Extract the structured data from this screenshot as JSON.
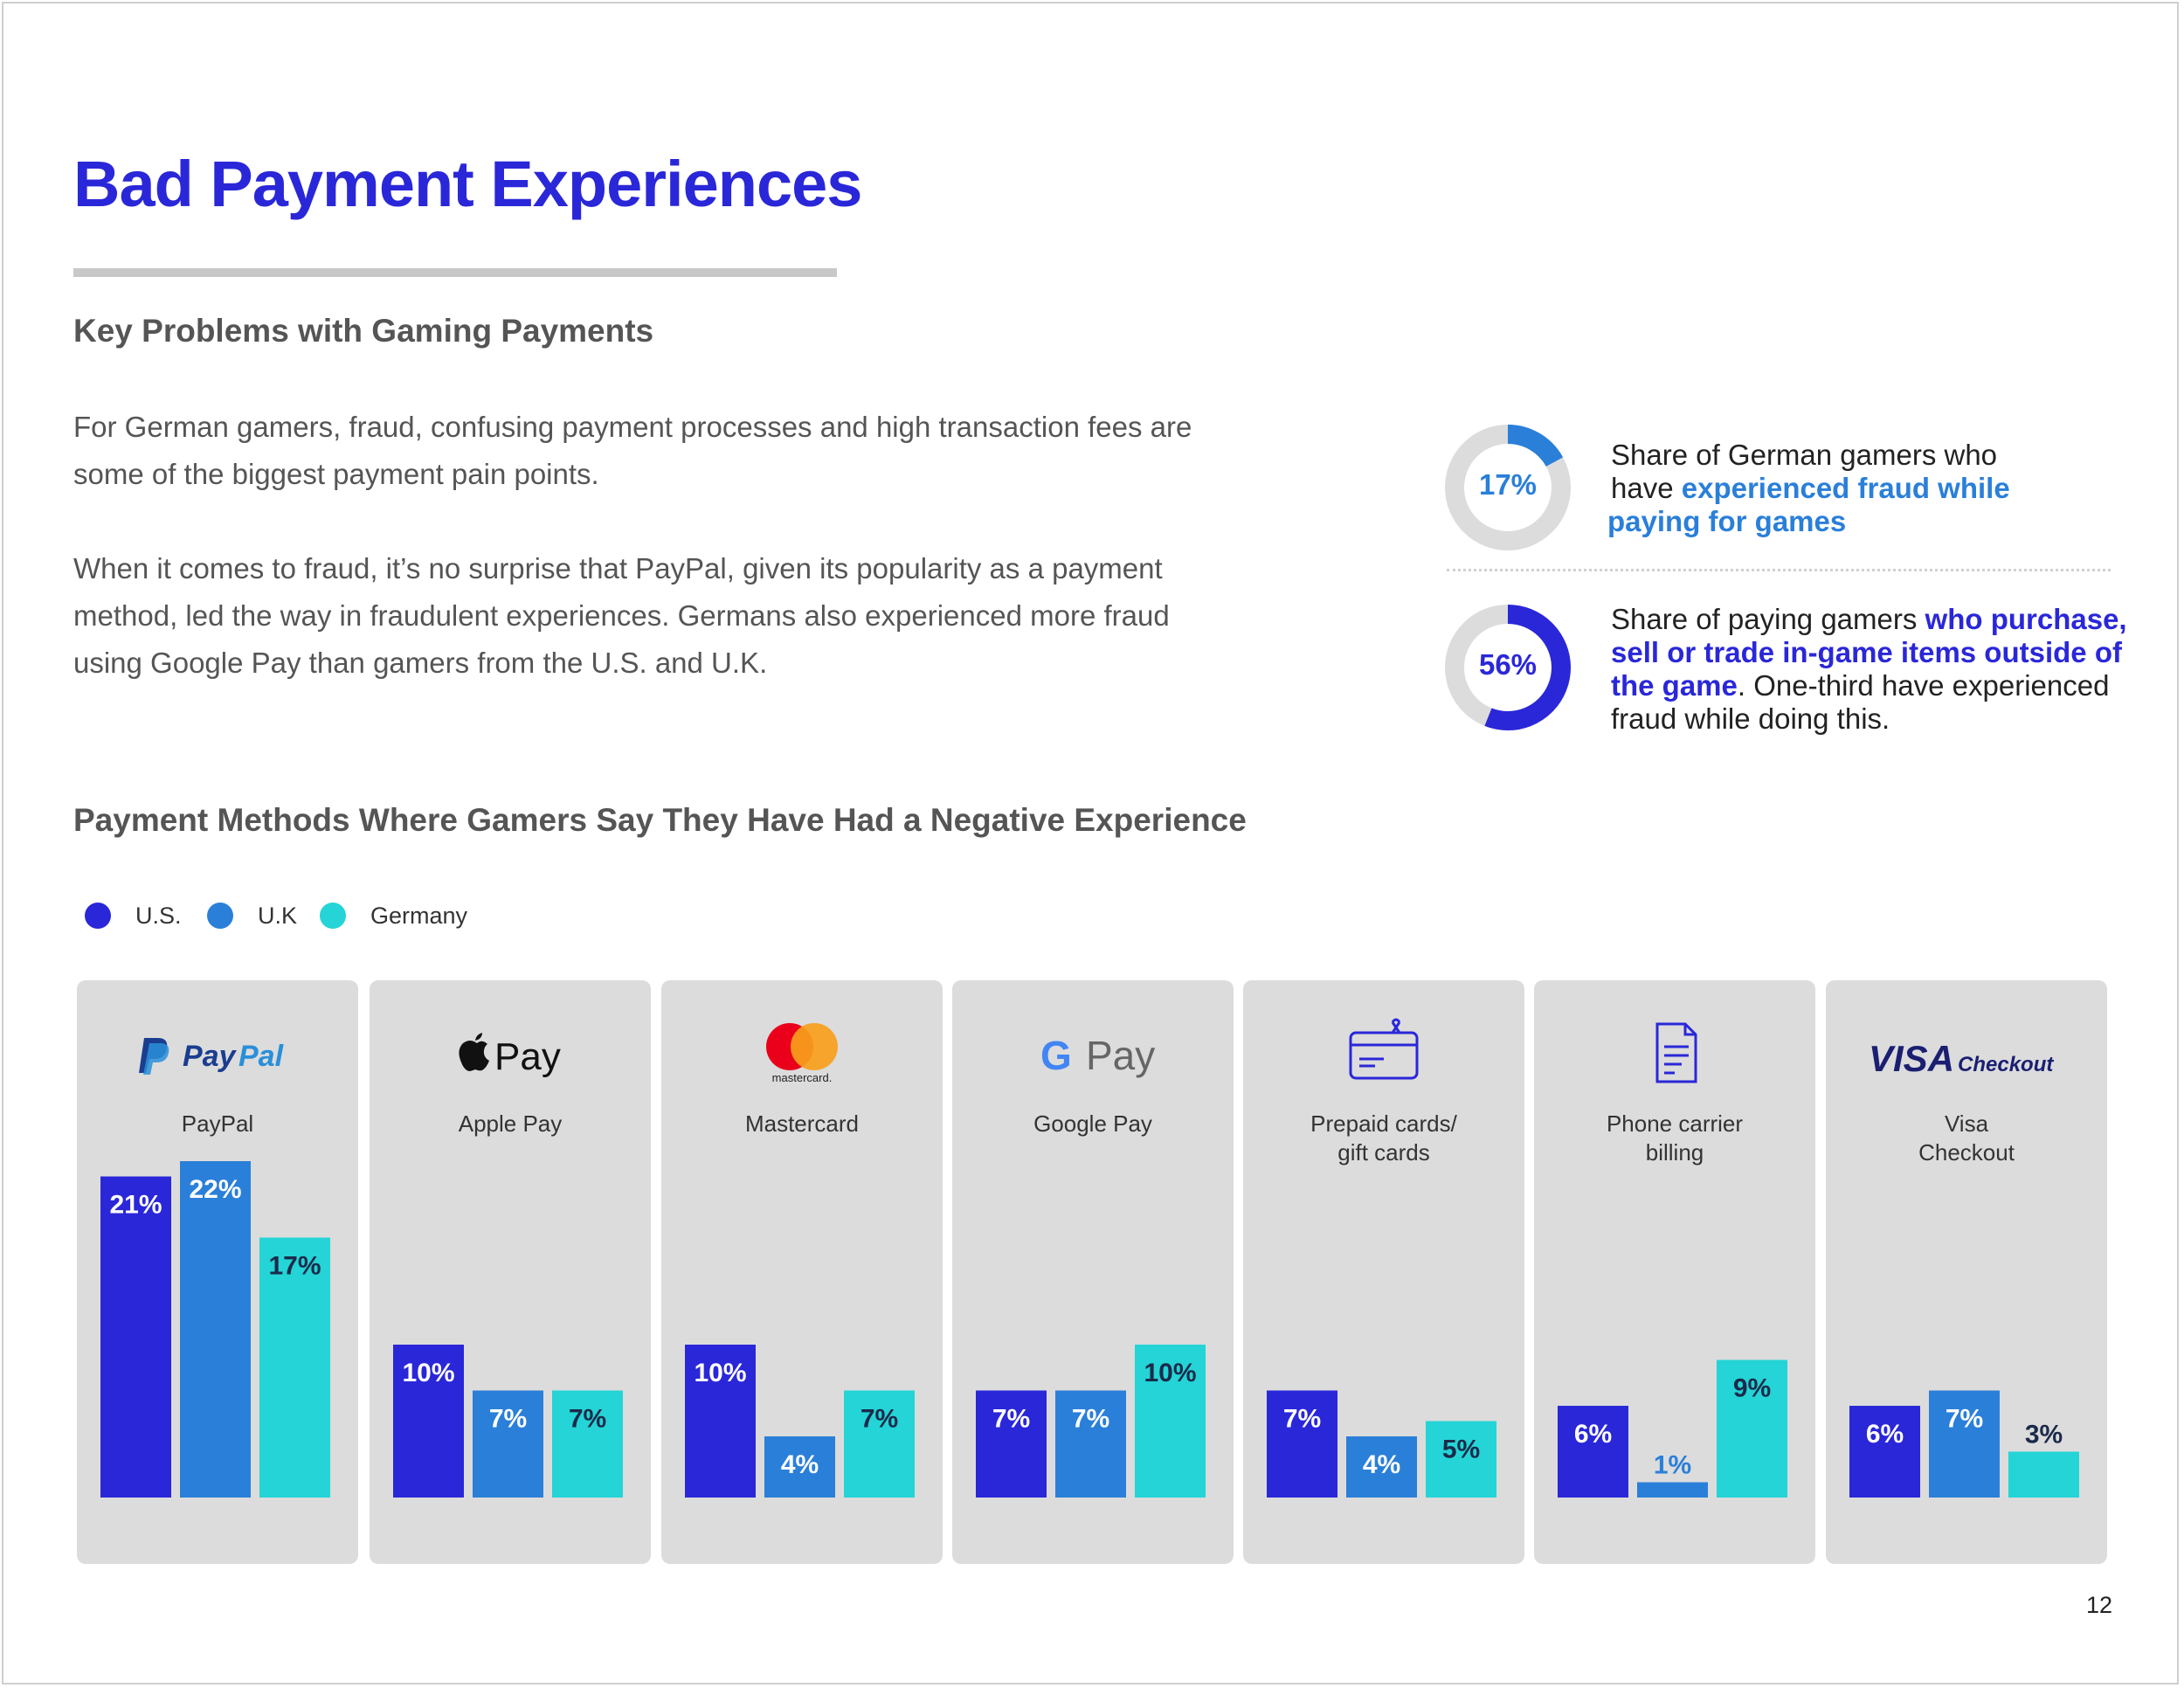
{
  "page": {
    "title": "Bad Payment Experiences",
    "subtitle": "Key Problems with Gaming Payments",
    "paragraph1_line1": "For German gamers, fraud, confusing payment processes and high transaction fees are",
    "paragraph1_line2": "some of the biggest payment pain points.",
    "paragraph2_line1": "When it comes to fraud, it’s no surprise that PayPal, given its popularity as a payment",
    "paragraph2_line2": "method, led the way in fraudulent experiences. Germans also experienced more fraud",
    "paragraph2_line3": "using Google Pay than gamers from the U.S. and U.K.",
    "page_number": "12"
  },
  "stats": [
    {
      "value": 17,
      "label": "17%",
      "color": "#2a7fd9",
      "line1": "Share of German gamers who",
      "line2_a": "have ",
      "line2_b": "experienced fraud while",
      "line3": "paying for games"
    },
    {
      "value": 56,
      "label": "56%",
      "color": "#2a27d9",
      "line1_a": "Share of paying gamers ",
      "line1_b": "who purchase,",
      "line2": "sell or trade in-game items outside of",
      "line3_a": "the game",
      "line3_b": ". One-third have experienced",
      "line4": "fraud while doing this."
    }
  ],
  "colors": {
    "us": "#2a27d9",
    "uk": "#2a7fd9",
    "germany": "#24d4d6",
    "panel": "#dcdcdc",
    "title": "#2a27d9"
  },
  "chart_data": {
    "type": "bar",
    "title": "Payment Methods Where Gamers Say They Have Had a Negative Experience",
    "ylim": [
      0,
      22
    ],
    "legend_position": "top-left",
    "series": [
      {
        "name": "U.S.",
        "values": [
          21,
          10,
          10,
          7,
          7,
          6,
          6
        ]
      },
      {
        "name": "U.K",
        "values": [
          22,
          7,
          4,
          7,
          4,
          1,
          7
        ]
      },
      {
        "name": "Germany",
        "values": [
          17,
          7,
          7,
          10,
          5,
          9,
          3
        ]
      }
    ],
    "categories": [
      {
        "line1": "PayPal",
        "line2": "",
        "logo": "paypal-logo",
        "logo_text_a": "Pay",
        "logo_text_b": "Pal"
      },
      {
        "line1": "Apple Pay",
        "line2": "",
        "logo": "apple-pay-logo",
        "logo_text": "Pay"
      },
      {
        "line1": "Mastercard",
        "line2": "",
        "logo": "mastercard-logo",
        "logo_text": "mastercard."
      },
      {
        "line1": "Google Pay",
        "line2": "",
        "logo": "google-pay-logo",
        "logo_text_a": "G",
        "logo_text_b": "Pay"
      },
      {
        "line1": "Prepaid cards/",
        "line2": "gift cards",
        "logo": "gift-card-icon"
      },
      {
        "line1": "Phone carrier",
        "line2": "billing",
        "logo": "document-icon"
      },
      {
        "line1": "Visa",
        "line2": "Checkout",
        "logo": "visa-checkout-logo",
        "logo_text_a": "VISA",
        "logo_text_b": "Checkout"
      }
    ]
  }
}
